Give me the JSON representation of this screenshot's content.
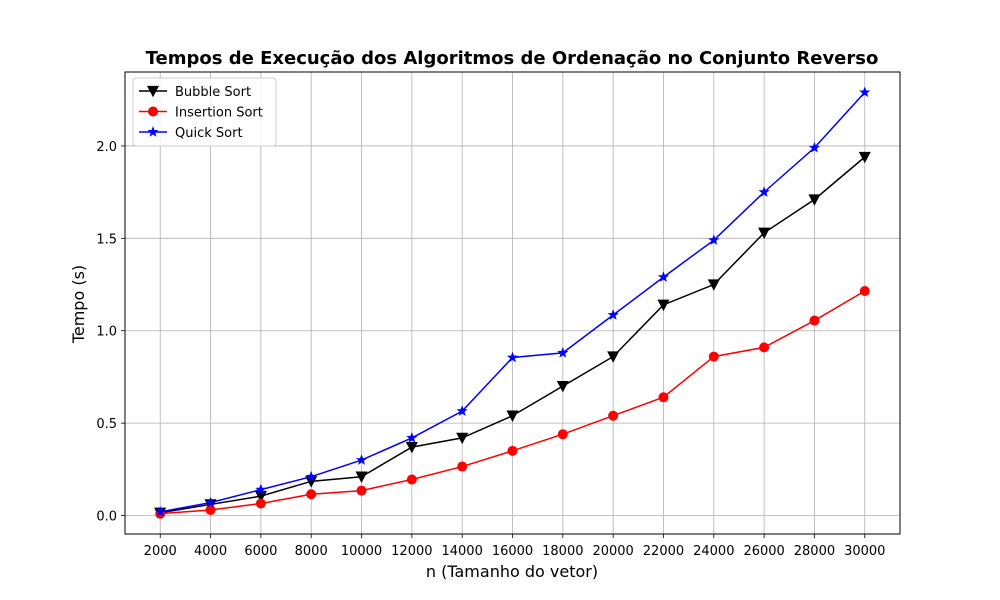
{
  "chart_data": {
    "type": "line",
    "title": "Tempos de Execução dos Algoritmos de Ordenação no Conjunto Reverso",
    "xlabel": "n (Tamanho do vetor)",
    "ylabel": "Tempo (s)",
    "x": [
      2000,
      4000,
      6000,
      8000,
      10000,
      12000,
      14000,
      16000,
      18000,
      20000,
      22000,
      24000,
      26000,
      28000,
      30000
    ],
    "xticks": [
      "2000",
      "4000",
      "6000",
      "8000",
      "10000",
      "12000",
      "14000",
      "16000",
      "18000",
      "20000",
      "22000",
      "24000",
      "26000",
      "28000",
      "30000"
    ],
    "yticks": [
      0.0,
      0.5,
      1.0,
      1.5,
      2.0
    ],
    "ytick_labels": [
      "0.0",
      "0.5",
      "1.0",
      "1.5",
      "2.0"
    ],
    "xlim": [
      600,
      31400
    ],
    "ylim": [
      -0.1,
      2.4
    ],
    "grid": true,
    "legend_position": "top-left",
    "series": [
      {
        "name": "Bubble Sort",
        "color": "#000000",
        "marker": "triangle-down",
        "values": [
          0.015,
          0.06,
          0.105,
          0.185,
          0.21,
          0.37,
          0.42,
          0.54,
          0.7,
          0.86,
          1.14,
          1.25,
          1.53,
          1.71,
          1.94
        ]
      },
      {
        "name": "Insertion Sort",
        "color": "#ff0000",
        "marker": "circle",
        "values": [
          0.01,
          0.03,
          0.065,
          0.115,
          0.135,
          0.195,
          0.265,
          0.35,
          0.44,
          0.54,
          0.64,
          0.86,
          0.91,
          1.055,
          1.215
        ]
      },
      {
        "name": "Quick Sort",
        "color": "#0000ff",
        "marker": "star",
        "values": [
          0.02,
          0.07,
          0.14,
          0.21,
          0.3,
          0.42,
          0.565,
          0.855,
          0.88,
          1.085,
          1.29,
          1.49,
          1.75,
          1.99,
          2.29
        ]
      }
    ]
  }
}
